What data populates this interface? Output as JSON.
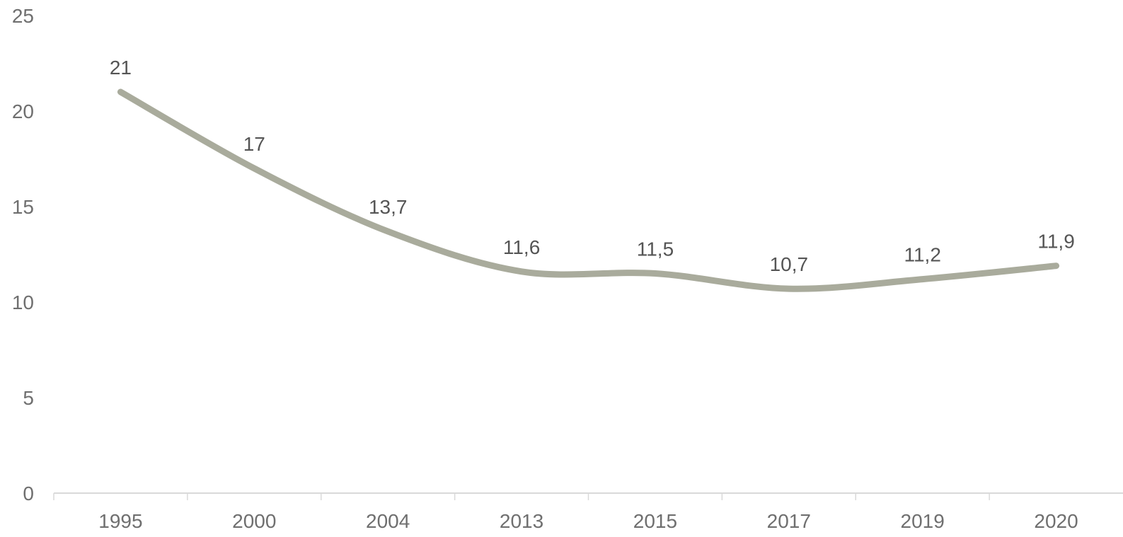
{
  "chart_data": {
    "type": "line",
    "categories": [
      "1995",
      "2000",
      "2004",
      "2013",
      "2015",
      "2017",
      "2019",
      "2020"
    ],
    "series": [
      {
        "values": [
          21,
          17,
          13.7,
          11.6,
          11.5,
          10.7,
          11.2,
          11.9
        ],
        "data_labels": [
          "21",
          "17",
          "13,7",
          "11,6",
          "11,5",
          "10,7",
          "11,2",
          "11,9"
        ],
        "color": "#a9ab9c"
      }
    ],
    "y_ticks": [
      0,
      5,
      10,
      15,
      20,
      25
    ],
    "ylim": [
      0,
      25
    ],
    "smooth": true,
    "grid": false,
    "legend": "none"
  }
}
